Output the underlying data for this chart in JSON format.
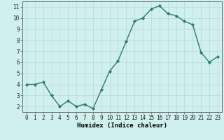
{
  "x": [
    0,
    1,
    2,
    3,
    4,
    5,
    6,
    7,
    8,
    9,
    10,
    11,
    12,
    13,
    14,
    15,
    16,
    17,
    18,
    19,
    20,
    21,
    22,
    23
  ],
  "y": [
    4.0,
    4.0,
    4.2,
    3.0,
    2.0,
    2.5,
    2.0,
    2.2,
    1.8,
    3.5,
    5.2,
    6.1,
    7.9,
    9.7,
    10.0,
    10.8,
    11.1,
    10.4,
    10.2,
    9.7,
    9.4,
    6.9,
    6.0,
    6.5
  ],
  "line_color": "#2d7a6a",
  "marker": "D",
  "marker_size": 2.2,
  "bg_color": "#cff0ee",
  "grid_color": "#b8d8d5",
  "xlabel": "Humidex (Indice chaleur)",
  "xlim": [
    -0.5,
    23.5
  ],
  "ylim": [
    1.5,
    11.5
  ],
  "yticks": [
    2,
    3,
    4,
    5,
    6,
    7,
    8,
    9,
    10,
    11
  ],
  "xticks": [
    0,
    1,
    2,
    3,
    4,
    5,
    6,
    7,
    8,
    9,
    10,
    11,
    12,
    13,
    14,
    15,
    16,
    17,
    18,
    19,
    20,
    21,
    22,
    23
  ],
  "tick_fontsize": 5.5,
  "xlabel_fontsize": 6.5,
  "line_width": 1.0
}
